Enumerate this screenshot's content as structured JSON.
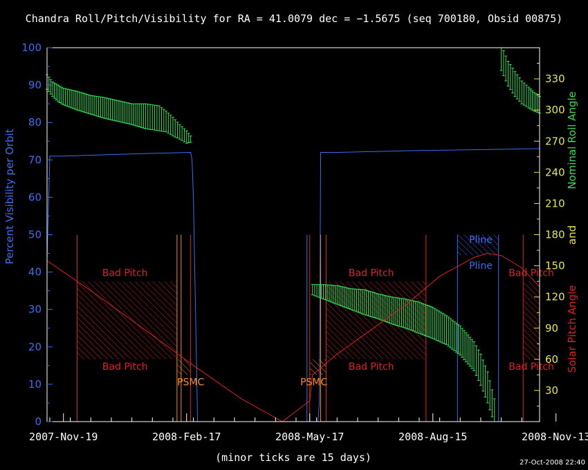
{
  "colors": {
    "background": "#000000",
    "axis_frame": "#ffffff",
    "visibility": "#3b6cf6",
    "roll": "#33dd55",
    "pitch": "#e02020",
    "psmc": "#ff8a1e",
    "pline": "#3b6cf6",
    "right_ticks": "#e6e64a"
  },
  "chart_data": {
    "type": "line",
    "title": "Chandra Roll/Pitch/Visibility for RA = 41.0079 dec = −1.5675 (seq 700180, Obsid 00875)",
    "xlabel": "(minor ticks are 15 days)",
    "x_date_ticks": [
      "2007-Nov-19",
      "2008-Feb-17",
      "2008-May-17",
      "2008-Aug-15",
      "2008-Nov-13"
    ],
    "x_range_days_from_first_tick": [
      -12,
      348
    ],
    "left_axis": {
      "label": "Percent Visibility per Orbit",
      "ylim": [
        0,
        100
      ],
      "ticks": [
        0,
        10,
        20,
        30,
        40,
        50,
        60,
        70,
        80,
        90,
        100
      ]
    },
    "right_axis": {
      "label_upper": "Nominal Roll Angle",
      "label_middle": "and",
      "label_lower": "Solar Pitch Angle",
      "ylim": [
        0,
        360
      ],
      "ticks": [
        30,
        60,
        90,
        120,
        150,
        180,
        210,
        240,
        270,
        300,
        330
      ]
    },
    "series": [
      {
        "name": "Percent Visibility per Orbit",
        "axis": "left",
        "color": "#3b6cf6",
        "points": [
          [
            -12,
            43
          ],
          [
            -10,
            71
          ],
          [
            0,
            71
          ],
          [
            40,
            71.5
          ],
          [
            93,
            72
          ],
          [
            94,
            70
          ],
          [
            95,
            60
          ],
          [
            98,
            0
          ],
          [
            186,
            0
          ],
          [
            187,
            5
          ],
          [
            188,
            72
          ],
          [
            200,
            72
          ],
          [
            260,
            72.5
          ],
          [
            348,
            73
          ]
        ]
      },
      {
        "name": "Nominal Roll Angle",
        "axis": "right",
        "color": "#33dd55",
        "type": "errorbar",
        "segments": [
          [
            [
              -12,
              327,
              7
            ],
            [
              -8,
              320,
              7
            ],
            [
              -4,
              316,
              8
            ],
            [
              0,
              313,
              8
            ],
            [
              10,
              309,
              9
            ],
            [
              20,
              305,
              9
            ],
            [
              30,
              302,
              10
            ],
            [
              40,
              299,
              10
            ],
            [
              50,
              296,
              10
            ],
            [
              60,
              294,
              12
            ],
            [
              65,
              293,
              12
            ],
            [
              70,
              292,
              12
            ],
            [
              75,
              289,
              10
            ],
            [
              80,
              284,
              9
            ],
            [
              85,
              279,
              7
            ],
            [
              90,
              274,
              6
            ],
            [
              93,
              272,
              3
            ]
          ],
          [
            [
              182,
              127,
              5
            ],
            [
              190,
              125,
              7
            ],
            [
              200,
              122,
              9
            ],
            [
              210,
              118,
              10
            ],
            [
              220,
              115,
              12
            ],
            [
              230,
              111,
              12
            ],
            [
              240,
              107,
              13
            ],
            [
              250,
              104,
              14
            ],
            [
              260,
              100,
              15
            ],
            [
              270,
              95,
              15
            ],
            [
              280,
              88,
              14
            ],
            [
              290,
              78,
              14
            ],
            [
              300,
              63,
              14
            ],
            [
              305,
              50,
              15
            ],
            [
              310,
              33,
              15
            ],
            [
              315,
              10,
              12
            ]
          ],
          [
            [
              320,
              350,
              12
            ],
            [
              325,
              335,
              12
            ],
            [
              330,
              325,
              12
            ],
            [
              335,
              317,
              11
            ],
            [
              340,
              312,
              10
            ],
            [
              344,
              308,
              9
            ],
            [
              348,
              305,
              8
            ]
          ]
        ]
      },
      {
        "name": "Solar Pitch Angle",
        "axis": "right",
        "color": "#e02020",
        "points": [
          [
            -12,
            155
          ],
          [
            20,
            126
          ],
          [
            60,
            88
          ],
          [
            94,
            55
          ],
          [
            130,
            22
          ],
          [
            160,
            0
          ],
          [
            180,
            20
          ],
          [
            182,
            45
          ],
          [
            200,
            65
          ],
          [
            250,
            112
          ],
          [
            275,
            140
          ],
          [
            300,
            158
          ],
          [
            310,
            162
          ],
          [
            320,
            160
          ],
          [
            335,
            148
          ],
          [
            348,
            130
          ]
        ]
      }
    ],
    "regions": [
      {
        "label": "Bad Pitch",
        "x": [
          10,
          83
        ],
        "y_right": [
          60,
          135
        ],
        "color": "#e02020",
        "hatched": true
      },
      {
        "label": "Bad Pitch",
        "x": [
          192,
          265
        ],
        "y_right": [
          60,
          135
        ],
        "color": "#e02020",
        "hatched": true
      },
      {
        "label": "Bad Pitch",
        "x": [
          336,
          348
        ],
        "y_right": [
          60,
          135
        ],
        "color": "#e02020",
        "hatched": true
      },
      {
        "label": "PSMC",
        "x": [
          83,
          93
        ],
        "y_right": [
          45,
          60
        ],
        "color": "#ff8a1e",
        "hatched": true
      },
      {
        "label": "PSMC",
        "x": [
          180,
          192
        ],
        "y_right": [
          45,
          60
        ],
        "color": "#ff8a1e",
        "hatched": true
      },
      {
        "label": "Pline",
        "x": [
          288,
          318
        ],
        "y_right": [
          160,
          180
        ],
        "color": "#3b6cf6",
        "hatched": true
      }
    ],
    "region_labels": [
      {
        "text": "Bad Pitch",
        "x": 45,
        "y_right": 140,
        "color": "#e02020"
      },
      {
        "text": "Bad Pitch",
        "x": 45,
        "y_right": 50,
        "color": "#e02020"
      },
      {
        "text": "Bad Pitch",
        "x": 225,
        "y_right": 140,
        "color": "#e02020"
      },
      {
        "text": "Bad Pitch",
        "x": 225,
        "y_right": 50,
        "color": "#e02020"
      },
      {
        "text": "Bad Pitch",
        "x": 342,
        "y_right": 140,
        "color": "#e02020"
      },
      {
        "text": "Bad Pitch",
        "x": 342,
        "y_right": 50,
        "color": "#e02020"
      },
      {
        "text": "PSMC",
        "x": 93,
        "y_right": 35,
        "color": "#ff8a1e"
      },
      {
        "text": "PSMC",
        "x": 183,
        "y_right": 35,
        "color": "#ff8a1e"
      },
      {
        "text": "Pline",
        "x": 305,
        "y_right": 172,
        "color": "#3b6cf6"
      },
      {
        "text": "Pline",
        "x": 305,
        "y_right": 147,
        "color": "#3b6cf6"
      }
    ],
    "vertical_lines": [
      {
        "x": 10,
        "color": "#e02020"
      },
      {
        "x": 83,
        "color": "#ff8a1e"
      },
      {
        "x": 86,
        "color": "#ff8a1e"
      },
      {
        "x": 93,
        "color": "#e02020"
      },
      {
        "x": 178,
        "color": "#3b6cf6"
      },
      {
        "x": 180,
        "color": "#e02020"
      },
      {
        "x": 188,
        "color": "#ff8a1e"
      },
      {
        "x": 192,
        "color": "#e02020"
      },
      {
        "x": 265,
        "color": "#e02020"
      },
      {
        "x": 288,
        "color": "#3b6cf6"
      },
      {
        "x": 318,
        "color": "#3b6cf6"
      },
      {
        "x": 336,
        "color": "#e02020"
      }
    ],
    "timestamp": "27-Oct-2008 22:40"
  }
}
